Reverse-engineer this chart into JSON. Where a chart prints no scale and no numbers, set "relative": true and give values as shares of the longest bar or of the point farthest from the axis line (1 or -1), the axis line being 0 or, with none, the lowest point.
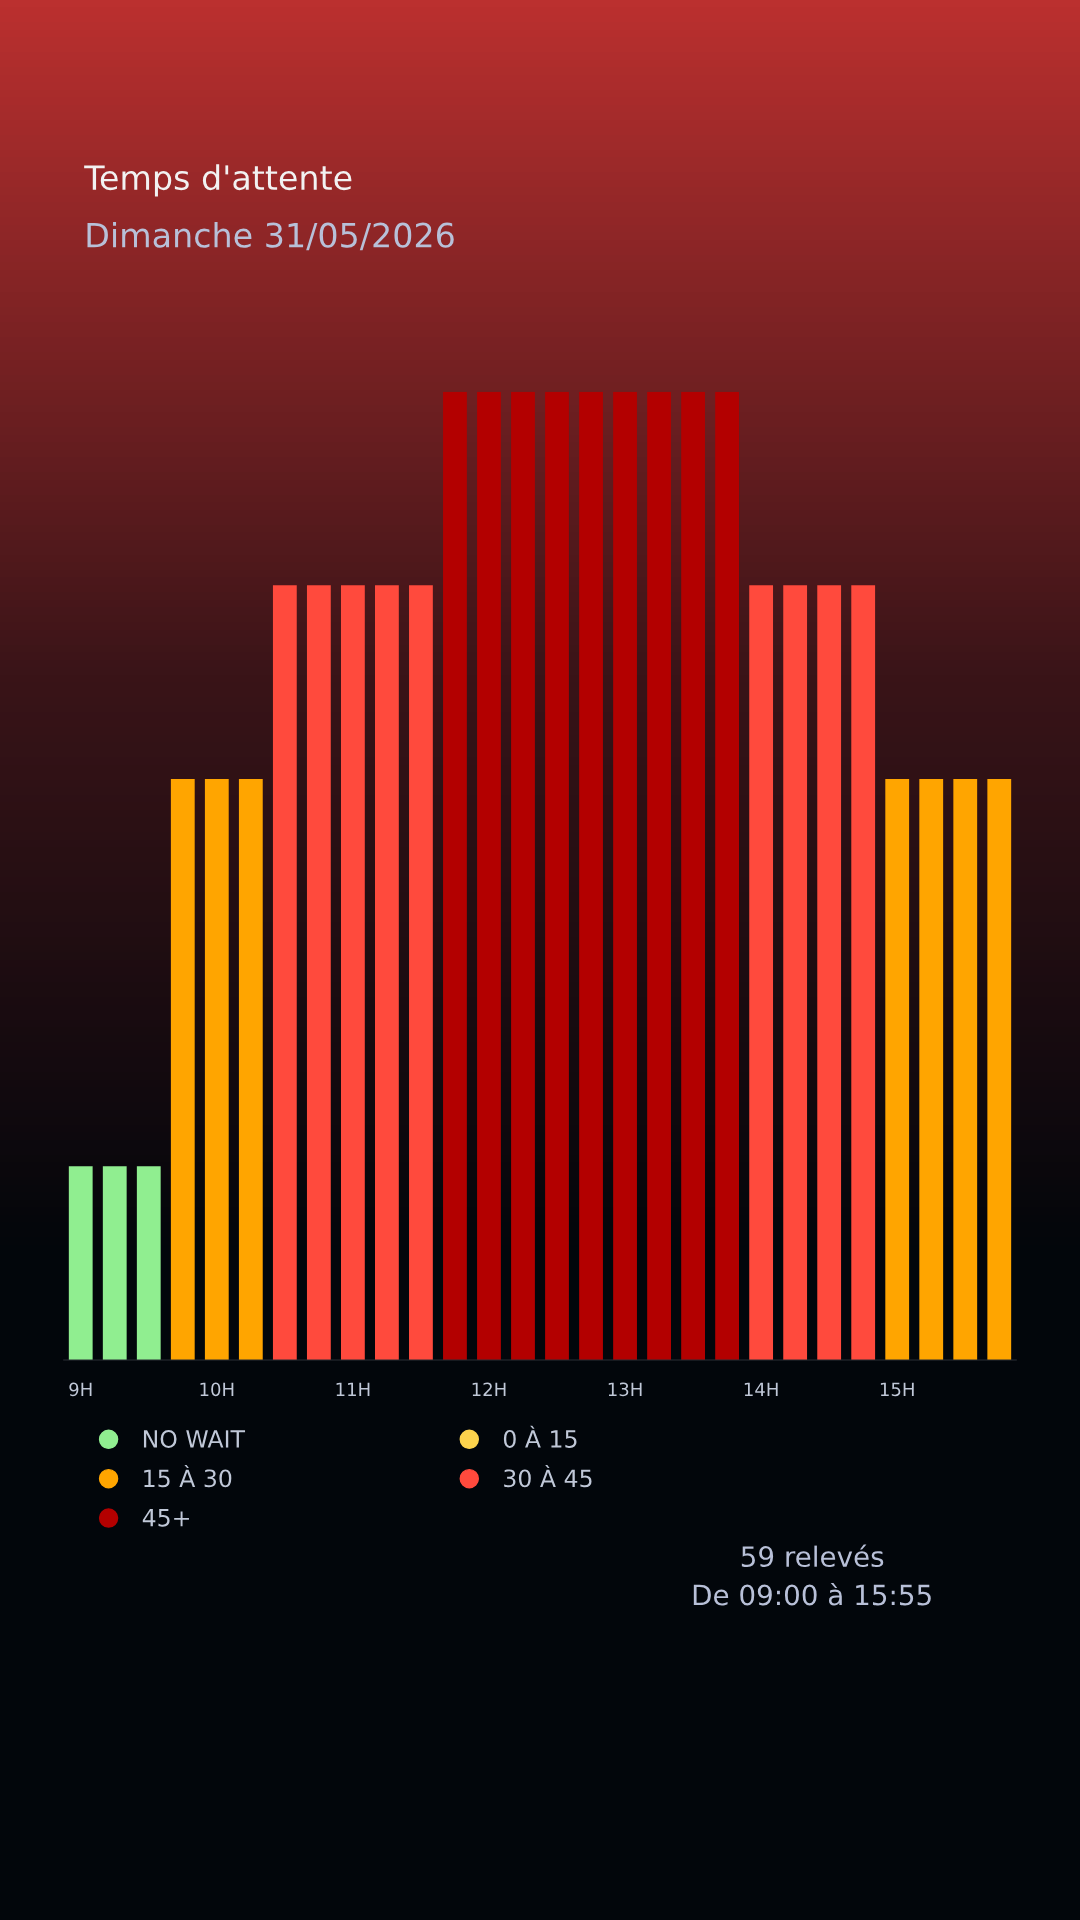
{
  "chart_data": {
    "type": "bar",
    "title": "Temps d'attente",
    "subtitle": "Dimanche 31/05/2026",
    "categories": [
      "9H",
      null,
      null,
      null,
      "10H",
      null,
      null,
      null,
      "11H",
      null,
      null,
      null,
      "12H",
      null,
      null,
      null,
      "13H",
      null,
      null,
      null,
      "14H",
      null,
      null,
      null,
      "15H",
      null,
      null,
      null
    ],
    "series": [
      {
        "name": "NO WAIT",
        "color": "#90ee90",
        "values": [
          0.2,
          0.2,
          0.2,
          null,
          null,
          null,
          null,
          null,
          null,
          null,
          null,
          null,
          null,
          null,
          null,
          null,
          null,
          null,
          null,
          null,
          null,
          null,
          null,
          null,
          null,
          null,
          null,
          null
        ]
      },
      {
        "name": "0 À 15",
        "color": "#fcd34d",
        "values": [
          null,
          null,
          null,
          null,
          null,
          null,
          null,
          null,
          null,
          null,
          null,
          null,
          null,
          null,
          null,
          null,
          null,
          null,
          null,
          null,
          null,
          null,
          null,
          null,
          null,
          null,
          null,
          null
        ]
      },
      {
        "name": "15 À 30",
        "color": "#ffa500",
        "values": [
          null,
          null,
          null,
          0.6,
          0.6,
          0.6,
          null,
          null,
          null,
          null,
          null,
          null,
          null,
          null,
          null,
          null,
          null,
          null,
          null,
          null,
          null,
          null,
          null,
          null,
          0.6,
          0.6,
          0.6,
          0.6
        ]
      },
      {
        "name": "30 À 45",
        "color": "#ff4a3d",
        "values": [
          null,
          null,
          null,
          null,
          null,
          null,
          0.8,
          0.8,
          0.8,
          0.8,
          0.8,
          null,
          null,
          null,
          null,
          null,
          null,
          null,
          null,
          null,
          0.8,
          0.8,
          0.8,
          0.8,
          null,
          null,
          null,
          null
        ]
      },
      {
        "name": "45+",
        "color": "#b30000",
        "values": [
          null,
          null,
          null,
          null,
          null,
          null,
          null,
          null,
          null,
          null,
          null,
          1,
          1,
          1,
          1,
          1,
          1,
          1,
          1,
          1,
          null,
          null,
          null,
          null,
          null,
          null,
          null,
          null
        ]
      }
    ],
    "relative": true,
    "grid": false,
    "legend": "bottom",
    "annotations": [
      "59 relevés",
      "De 09:00 à 15:55"
    ]
  }
}
